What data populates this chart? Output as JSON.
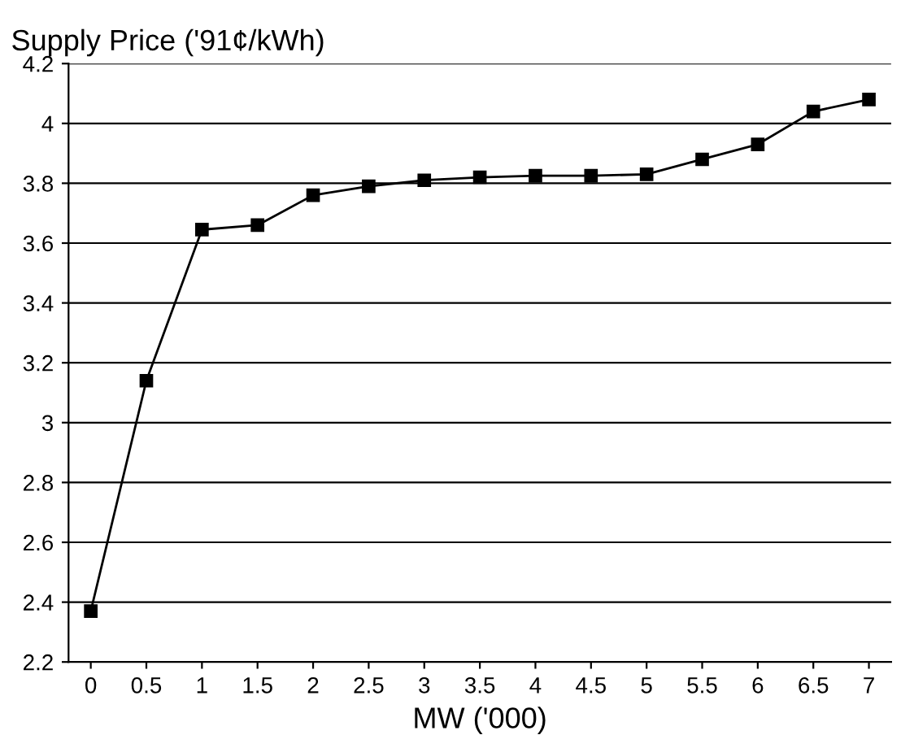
{
  "chart_data": {
    "type": "line",
    "ylabel": "Supply Price ('91¢/kWh)",
    "xlabel": "MW ('000)",
    "x": [
      0,
      0.5,
      1,
      1.5,
      2,
      2.5,
      3,
      3.5,
      4,
      4.5,
      5,
      5.5,
      6,
      6.5,
      7
    ],
    "series": [
      {
        "color": "#000000",
        "values": [
          2.37,
          3.14,
          3.645,
          3.66,
          3.76,
          3.79,
          3.81,
          3.82,
          3.825,
          3.825,
          3.83,
          3.88,
          3.93,
          4.04,
          4.08
        ]
      }
    ],
    "xlim": [
      -0.2,
      7.2
    ],
    "xticks": [
      0,
      0.5,
      1,
      1.5,
      2,
      2.5,
      3,
      3.5,
      4,
      4.5,
      5,
      5.5,
      6,
      6.5,
      7
    ],
    "ylim": [
      2.2,
      4.2
    ],
    "yticks": [
      2.2,
      2.4,
      2.6,
      2.8,
      3,
      3.2,
      3.4,
      3.6,
      3.8,
      4,
      4.2
    ],
    "grid": "y",
    "marker": "square",
    "line_style": "solid",
    "legend": false
  }
}
